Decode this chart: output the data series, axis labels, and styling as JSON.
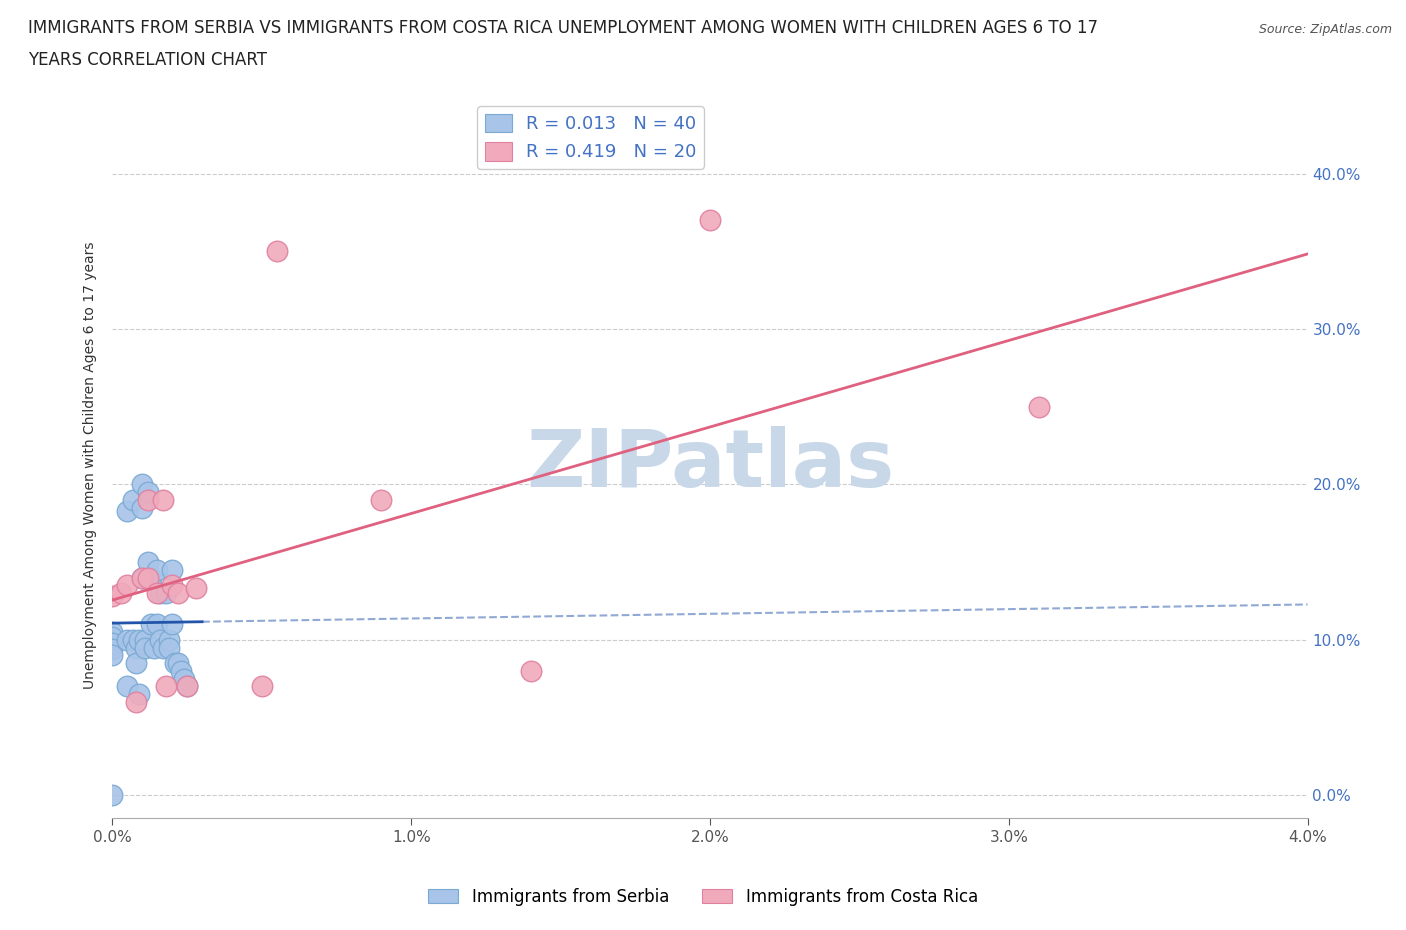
{
  "title_line1": "IMMIGRANTS FROM SERBIA VS IMMIGRANTS FROM COSTA RICA UNEMPLOYMENT AMONG WOMEN WITH CHILDREN AGES 6 TO 17",
  "title_line2": "YEARS CORRELATION CHART",
  "source": "Source: ZipAtlas.com",
  "ylabel": "Unemployment Among Women with Children Ages 6 to 17 years",
  "serbia_R": 0.013,
  "serbia_N": 40,
  "costarica_R": 0.419,
  "costarica_N": 20,
  "serbia_color": "#a8c4e8",
  "serbia_edge_color": "#7aaad4",
  "serbia_line_color": "#2255aa",
  "costarica_color": "#f0aabb",
  "costarica_edge_color": "#e080a0",
  "costarica_line_color": "#e06080",
  "xlim": [
    0.0,
    0.04
  ],
  "ylim": [
    -0.015,
    0.44
  ],
  "xticks": [
    0.0,
    0.01,
    0.02,
    0.03,
    0.04
  ],
  "yticks": [
    0.0,
    0.1,
    0.2,
    0.3,
    0.4
  ],
  "serbia_x": [
    0.0,
    0.0,
    0.0,
    0.0,
    0.0,
    0.0005,
    0.0005,
    0.0005,
    0.0007,
    0.0007,
    0.0008,
    0.0008,
    0.0009,
    0.0009,
    0.001,
    0.001,
    0.001,
    0.0011,
    0.0011,
    0.0012,
    0.0012,
    0.0013,
    0.0013,
    0.0014,
    0.0015,
    0.0015,
    0.0016,
    0.0016,
    0.0017,
    0.0018,
    0.0019,
    0.0019,
    0.002,
    0.002,
    0.0021,
    0.0022,
    0.0023,
    0.0024,
    0.0025,
    0.0
  ],
  "serbia_y": [
    0.105,
    0.102,
    0.098,
    0.094,
    0.09,
    0.183,
    0.1,
    0.07,
    0.19,
    0.1,
    0.095,
    0.085,
    0.1,
    0.065,
    0.2,
    0.185,
    0.14,
    0.1,
    0.095,
    0.195,
    0.15,
    0.14,
    0.11,
    0.095,
    0.145,
    0.11,
    0.13,
    0.1,
    0.095,
    0.13,
    0.1,
    0.095,
    0.145,
    0.11,
    0.085,
    0.085,
    0.08,
    0.075,
    0.07,
    0.0
  ],
  "costarica_x": [
    0.0,
    0.0003,
    0.0005,
    0.0008,
    0.001,
    0.0012,
    0.0012,
    0.0015,
    0.0017,
    0.0018,
    0.002,
    0.0022,
    0.0025,
    0.0028,
    0.005,
    0.0055,
    0.009,
    0.014,
    0.02,
    0.031
  ],
  "costarica_y": [
    0.128,
    0.13,
    0.135,
    0.06,
    0.14,
    0.19,
    0.14,
    0.13,
    0.19,
    0.07,
    0.135,
    0.13,
    0.07,
    0.133,
    0.07,
    0.35,
    0.19,
    0.08,
    0.37,
    0.25
  ],
  "watermark_text": "ZIPatlas",
  "watermark_color": "#c8d8e8",
  "background_color": "#ffffff",
  "grid_color": "#cccccc",
  "legend_text_color": "#4472c4"
}
